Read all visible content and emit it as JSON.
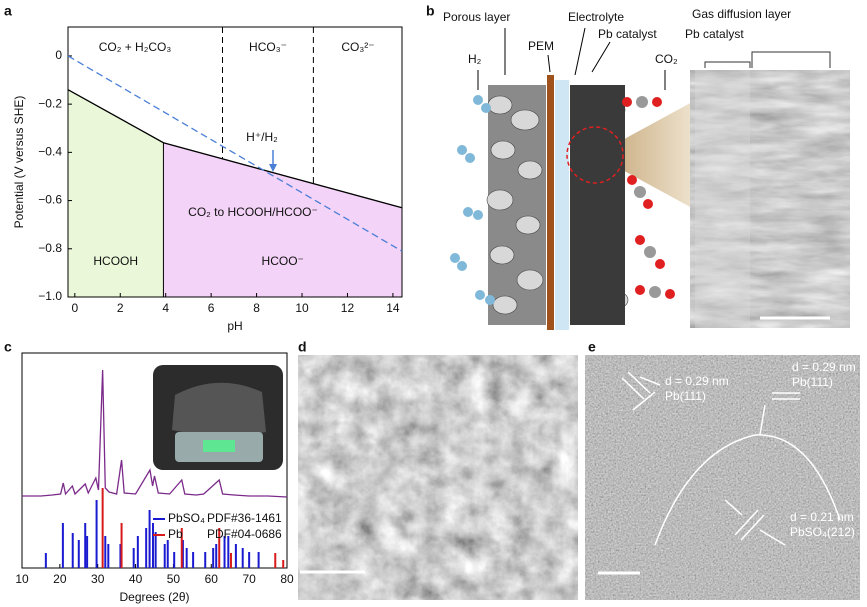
{
  "panel_labels": [
    "a",
    "b",
    "c",
    "d",
    "e"
  ],
  "chart_data": [
    {
      "type": "line",
      "xlabel": "pH",
      "ylabel": "Potential (V versus SHE)",
      "xlim": [
        -0.3,
        14.4
      ],
      "xticks": [
        0,
        2,
        4,
        6,
        8,
        10,
        12,
        14
      ],
      "ylim": [
        -1.0,
        0.12
      ],
      "yticks": [
        0,
        {
          "value": -0.2,
          "label": "−0.2"
        },
        {
          "value": -0.4,
          "label": "−0.4"
        },
        {
          "value": -0.6,
          "label": "−0.6"
        },
        {
          "value": -0.8,
          "label": "−0.8"
        },
        {
          "value": -1.0,
          "label": "−1.0"
        }
      ],
      "series": [
        {
          "color": "#000000",
          "dash": false,
          "x": [
            -0.3,
            3.9,
            14.4
          ],
          "values": [
            -0.14,
            -0.36,
            -0.63
          ]
        },
        {
          "color": "#4a7fd6",
          "dash": true,
          "x": [
            -0.3,
            14.4
          ],
          "values": [
            0,
            -0.81
          ]
        }
      ],
      "boundaries": [
        {
          "x": 3.9,
          "dash": false
        },
        {
          "x": 6.5,
          "dash": true
        },
        {
          "x": 10.5,
          "dash": true
        }
      ],
      "regions": [
        {
          "label": "HCOOH",
          "color": "#eaf7d8"
        },
        {
          "label": "HCOO⁻",
          "color": "#f3d3f7"
        }
      ],
      "annotations": [
        "CO₂ + H₂CO₃",
        "HCO₃⁻",
        "CO₃²⁻",
        "H⁺/H₂",
        "CO₂ to HCOOH/HCOO⁻"
      ]
    },
    {
      "type": "line",
      "xlabel": "Degrees (2θ)",
      "xlim": [
        10,
        80
      ],
      "xticks": [
        10,
        20,
        30,
        40,
        50,
        60,
        70,
        80
      ],
      "ylim": [
        0,
        215
      ],
      "series": [
        {
          "color": "#7b2a8a",
          "style": "line",
          "x": [
            10,
            15,
            18,
            20.2,
            20.9,
            21.5,
            23.3,
            24,
            26.7,
            27.5,
            29.5,
            30.2,
            31.3,
            32,
            33,
            35,
            36.3,
            37,
            40,
            43.8,
            44.5,
            45,
            46,
            49,
            52.2,
            53,
            56,
            58,
            62.1,
            63,
            66,
            70,
            75,
            80
          ],
          "values": [
            72,
            72,
            73,
            74,
            85,
            74,
            82,
            74,
            84,
            75,
            90,
            78,
            198,
            80,
            76,
            74,
            108,
            75,
            74,
            98,
            82,
            92,
            75,
            74,
            88,
            74,
            73,
            74,
            88,
            74,
            73,
            72,
            72,
            71
          ]
        },
        {
          "name": "PbSO₄",
          "note": "PDF#36-1461",
          "color": "#1a1ad0",
          "style": "stick",
          "x": [
            16.3,
            20.8,
            23.4,
            25,
            26.7,
            27.2,
            29.7,
            32,
            32.8,
            36,
            39.5,
            40.6,
            42.8,
            43.7,
            44.6,
            45.3,
            47.7,
            48.5,
            50.2,
            52.5,
            53.5,
            55.2,
            58.4,
            60.5,
            61.3,
            63.5,
            64.5,
            66.5,
            68.3,
            70,
            72.5
          ],
          "values": [
            15,
            45,
            35,
            28,
            45,
            32,
            68,
            32,
            24,
            24,
            20,
            32,
            40,
            58,
            45,
            36,
            24,
            28,
            16,
            28,
            20,
            16,
            16,
            20,
            24,
            32,
            32,
            24,
            20,
            16,
            16
          ]
        },
        {
          "name": "Pb",
          "note": "PDF#04-0686",
          "color": "#d81a1a",
          "style": "stick",
          "x": [
            31.3,
            36.3,
            52.2,
            62.1,
            65.2,
            76.9,
            79
          ],
          "values": [
            80,
            45,
            40,
            40,
            15,
            15,
            8
          ]
        }
      ]
    }
  ],
  "panel_b": {
    "porous_layer": "Porous layer",
    "electrolyte": "Electrolyte",
    "gas_diffusion_layer": "Gas diffusion layer",
    "pem": "PEM",
    "pb_catalyst_left": "Pb catalyst",
    "pb_catalyst_right": "Pb catalyst",
    "h2": "H₂",
    "co2": "CO₂"
  },
  "panel_e": {
    "annotations": [
      {
        "d": "d = 0.29 nm",
        "plane": "Pb(111)"
      },
      {
        "d": "d = 0.29 nm",
        "plane": "Pb(111)"
      },
      {
        "d": "d = 0.21 nm",
        "plane": "PbSO₄(212)"
      }
    ]
  }
}
